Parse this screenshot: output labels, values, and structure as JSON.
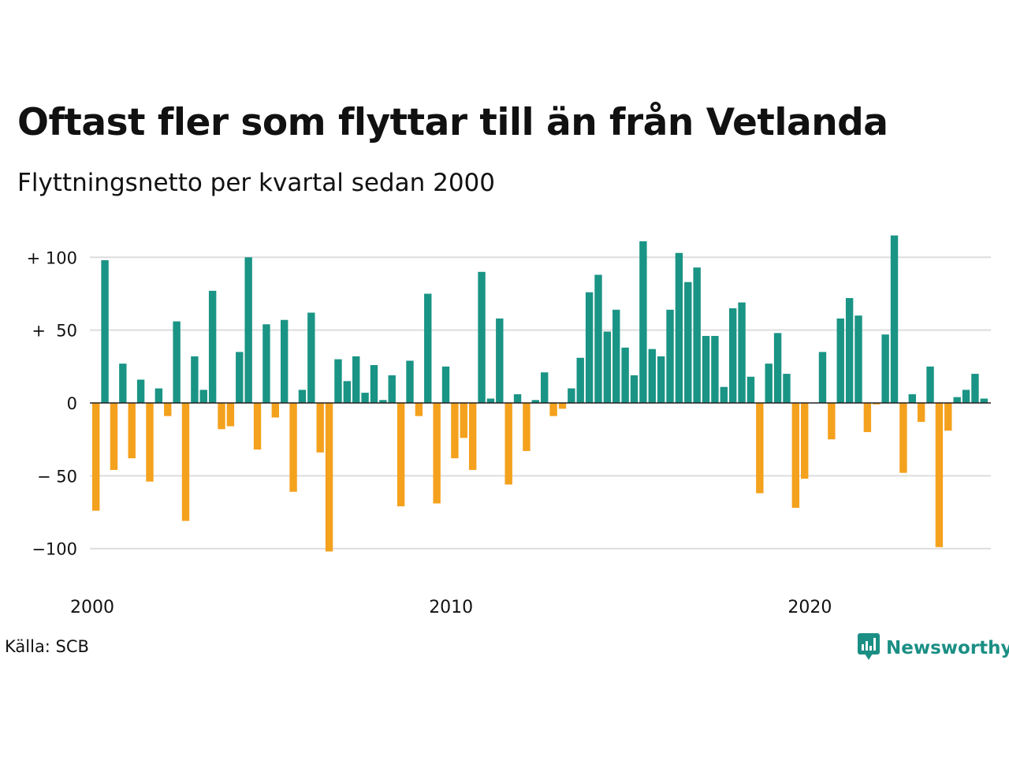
{
  "header": {
    "title": "Oftast fler som flyttar till än från Vetlanda",
    "subtitle": "Flyttningsnetto per kvartal sedan 2000"
  },
  "footer": {
    "source": "Källa: SCB",
    "brand": "Newsworthy",
    "brand_icon": "newsworthy-logo-icon"
  },
  "colors": {
    "positive": "#1a9485",
    "negative": "#f4a11d",
    "grid": "#dddddd",
    "brand": "#1b8f84"
  },
  "chart_data": {
    "type": "bar",
    "title": "Oftast fler som flyttar till än från Vetlanda",
    "subtitle": "Flyttningsnetto per kvartal sedan 2000",
    "x_start": "2000 Q1",
    "x_interval": "quarter",
    "xlabel": "",
    "ylabel": "",
    "ylim": [
      -110,
      120
    ],
    "grid": true,
    "yticks": [
      {
        "value": 100,
        "label": "+ 100"
      },
      {
        "value": 50,
        "label": "+  50"
      },
      {
        "value": 0,
        "label": "0"
      },
      {
        "value": -50,
        "label": "− 50"
      },
      {
        "value": -100,
        "label": "−100"
      }
    ],
    "xticks": [
      {
        "value": "2000",
        "label": "2000"
      },
      {
        "value": "2010",
        "label": "2010"
      },
      {
        "value": "2020",
        "label": "2020"
      }
    ],
    "values": [
      -74,
      98,
      -46,
      27,
      -38,
      16,
      -54,
      10,
      -9,
      56,
      -81,
      32,
      9,
      77,
      -18,
      -16,
      35,
      100,
      -32,
      54,
      -10,
      57,
      -61,
      9,
      62,
      -34,
      -102,
      30,
      15,
      32,
      7,
      26,
      2,
      19,
      -71,
      29,
      -9,
      75,
      -69,
      25,
      -38,
      -24,
      -46,
      90,
      3,
      58,
      -56,
      6,
      -33,
      2,
      21,
      -9,
      -4,
      10,
      31,
      76,
      88,
      49,
      64,
      38,
      19,
      111,
      37,
      32,
      64,
      103,
      83,
      93,
      46,
      46,
      11,
      65,
      69,
      18,
      -62,
      27,
      48,
      20,
      -72,
      -52,
      0,
      35,
      -25,
      58,
      72,
      60,
      -20,
      -1,
      47,
      115,
      -48,
      6,
      -13,
      25,
      -99,
      -19,
      4,
      9,
      20,
      3
    ]
  }
}
